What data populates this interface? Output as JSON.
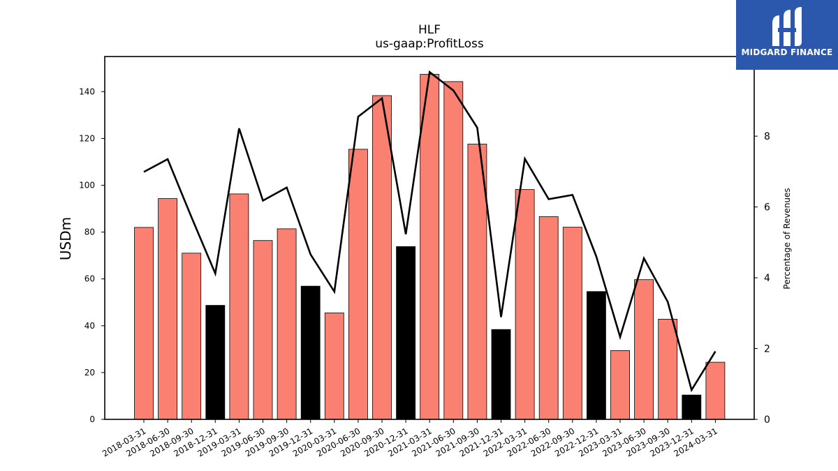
{
  "chart_data": {
    "type": "bar",
    "title": "HLF",
    "subtitle": "us-gaap:ProfitLoss",
    "ylabel": "USDm",
    "y2label": "Percentage of Revenues",
    "ylim": [
      0,
      155
    ],
    "y2lim": [
      0,
      10.25
    ],
    "yticks": [
      0,
      20,
      40,
      60,
      80,
      100,
      120,
      140
    ],
    "y2ticks": [
      0,
      2,
      4,
      6,
      8
    ],
    "categories": [
      "2018-03-31",
      "2018-06-30",
      "2018-09-30",
      "2018-12-31",
      "2019-03-31",
      "2019-06-30",
      "2019-09-30",
      "2019-12-31",
      "2020-03-31",
      "2020-06-30",
      "2020-09-30",
      "2020-12-31",
      "2021-03-31",
      "2021-06-30",
      "2021-09-30",
      "2021-12-31",
      "2022-03-31",
      "2022-06-30",
      "2022-09-30",
      "2022-12-31",
      "2023-03-31",
      "2023-06-30",
      "2023-09-30",
      "2023-12-31",
      "2024-03-31"
    ],
    "series": [
      {
        "type": "bar",
        "axis": "left",
        "values": [
          82,
          94.3,
          71,
          48.7,
          96.3,
          76.4,
          81.4,
          56.9,
          45.5,
          115.4,
          138.3,
          73.8,
          147.4,
          144.3,
          117.6,
          38.4,
          98.2,
          86.6,
          82.1,
          54.6,
          29.4,
          59.7,
          42.8,
          10.4,
          24.4
        ],
        "colors": [
          "#fa8072",
          "#fa8072",
          "#fa8072",
          "#000000",
          "#fa8072",
          "#fa8072",
          "#fa8072",
          "#000000",
          "#fa8072",
          "#fa8072",
          "#fa8072",
          "#000000",
          "#fa8072",
          "#fa8072",
          "#fa8072",
          "#000000",
          "#fa8072",
          "#fa8072",
          "#fa8072",
          "#000000",
          "#fa8072",
          "#fa8072",
          "#fa8072",
          "#000000",
          "#fa8072"
        ]
      },
      {
        "type": "line",
        "axis": "right",
        "color": "#000000",
        "values": [
          6.99,
          7.35,
          5.71,
          4.12,
          8.22,
          6.18,
          6.55,
          4.66,
          3.61,
          8.55,
          9.07,
          5.23,
          9.81,
          9.29,
          8.24,
          2.89,
          7.36,
          6.22,
          6.34,
          4.6,
          2.33,
          4.55,
          3.32,
          0.83,
          1.92
        ]
      }
    ],
    "grid": false,
    "legend": "none"
  },
  "logo": {
    "text": "MIDGARD FINANCE",
    "background": "#2b58ad"
  }
}
